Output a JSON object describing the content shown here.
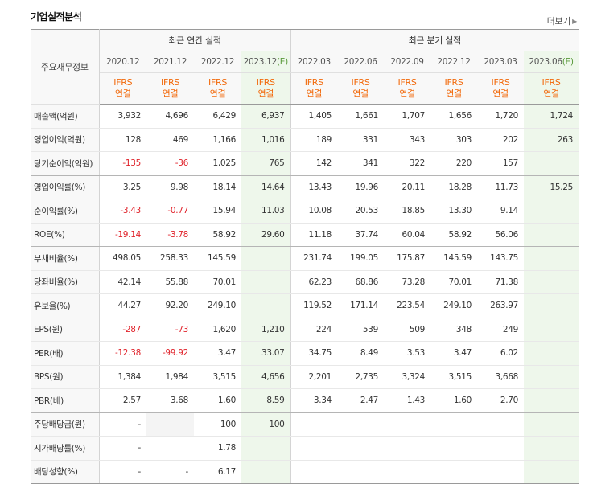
{
  "header": {
    "title": "기업실적분석",
    "more_label": "더보기"
  },
  "columns": {
    "corner_label": "주요재무정보",
    "annual_group": "최근 연간 실적",
    "quarter_group": "최근 분기 실적",
    "annual": [
      {
        "period": "2020.12",
        "est": "",
        "std1": "IFRS",
        "std2": "연결"
      },
      {
        "period": "2021.12",
        "est": "",
        "std1": "IFRS",
        "std2": "연결"
      },
      {
        "period": "2022.12",
        "est": "",
        "std1": "IFRS",
        "std2": "연결"
      },
      {
        "period": "2023.12",
        "est": "(E)",
        "std1": "IFRS",
        "std2": "연결"
      }
    ],
    "quarter": [
      {
        "period": "2022.03",
        "est": "",
        "std1": "IFRS",
        "std2": "연결"
      },
      {
        "period": "2022.06",
        "est": "",
        "std1": "IFRS",
        "std2": "연결"
      },
      {
        "period": "2022.09",
        "est": "",
        "std1": "IFRS",
        "std2": "연결"
      },
      {
        "period": "2022.12",
        "est": "",
        "std1": "IFRS",
        "std2": "연결"
      },
      {
        "period": "2023.03",
        "est": "",
        "std1": "IFRS",
        "std2": "연결"
      },
      {
        "period": "2023.06",
        "est": "(E)",
        "std1": "IFRS",
        "std2": "연결"
      }
    ]
  },
  "rows": [
    {
      "label": "매출액(억원)",
      "values": [
        "3,932",
        "4,696",
        "6,429",
        "6,937",
        "1,405",
        "1,661",
        "1,707",
        "1,656",
        "1,720",
        "1,724"
      ]
    },
    {
      "label": "영업이익(억원)",
      "values": [
        "128",
        "469",
        "1,166",
        "1,016",
        "189",
        "331",
        "343",
        "303",
        "202",
        "263"
      ]
    },
    {
      "label": "당기순이익(억원)",
      "values": [
        "-135",
        "-36",
        "1,025",
        "765",
        "142",
        "341",
        "322",
        "220",
        "157",
        ""
      ]
    },
    {
      "label": "영업이익률(%)",
      "values": [
        "3.25",
        "9.98",
        "18.14",
        "14.64",
        "13.43",
        "19.96",
        "20.11",
        "18.28",
        "11.73",
        "15.25"
      ]
    },
    {
      "label": "순이익률(%)",
      "values": [
        "-3.43",
        "-0.77",
        "15.94",
        "11.03",
        "10.08",
        "20.53",
        "18.85",
        "13.30",
        "9.14",
        ""
      ]
    },
    {
      "label": "ROE(%)",
      "values": [
        "-19.14",
        "-3.78",
        "58.92",
        "29.60",
        "11.18",
        "37.74",
        "60.04",
        "58.92",
        "56.06",
        ""
      ]
    },
    {
      "label": "부채비율(%)",
      "values": [
        "498.05",
        "258.33",
        "145.59",
        "",
        "231.74",
        "199.05",
        "175.87",
        "145.59",
        "143.75",
        ""
      ]
    },
    {
      "label": "당좌비율(%)",
      "values": [
        "42.14",
        "55.88",
        "70.01",
        "",
        "62.23",
        "68.86",
        "73.28",
        "70.01",
        "71.38",
        ""
      ]
    },
    {
      "label": "유보율(%)",
      "values": [
        "44.27",
        "92.20",
        "249.10",
        "",
        "119.52",
        "171.14",
        "223.54",
        "249.10",
        "263.97",
        ""
      ]
    },
    {
      "label": "EPS(원)",
      "values": [
        "-287",
        "-73",
        "1,620",
        "1,210",
        "224",
        "539",
        "509",
        "348",
        "249",
        ""
      ]
    },
    {
      "label": "PER(배)",
      "values": [
        "-12.38",
        "-99.92",
        "3.47",
        "33.07",
        "34.75",
        "8.49",
        "3.53",
        "3.47",
        "6.02",
        ""
      ]
    },
    {
      "label": "BPS(원)",
      "values": [
        "1,384",
        "1,984",
        "3,515",
        "4,656",
        "2,201",
        "2,735",
        "3,324",
        "3,515",
        "3,668",
        ""
      ]
    },
    {
      "label": "PBR(배)",
      "values": [
        "2.57",
        "3.68",
        "1.60",
        "8.59",
        "3.34",
        "2.47",
        "1.43",
        "1.60",
        "2.70",
        ""
      ]
    },
    {
      "label": "주당배당금(원)",
      "values": [
        "-",
        "",
        "100",
        "100",
        "",
        "",
        "",
        "",
        "",
        ""
      ]
    },
    {
      "label": "시가배당률(%)",
      "values": [
        "-",
        "",
        "1.78",
        "",
        "",
        "",
        "",
        "",
        "",
        ""
      ]
    },
    {
      "label": "배당성향(%)",
      "values": [
        "-",
        "-",
        "6.17",
        "",
        "",
        "",
        "",
        "",
        "",
        ""
      ]
    }
  ]
}
